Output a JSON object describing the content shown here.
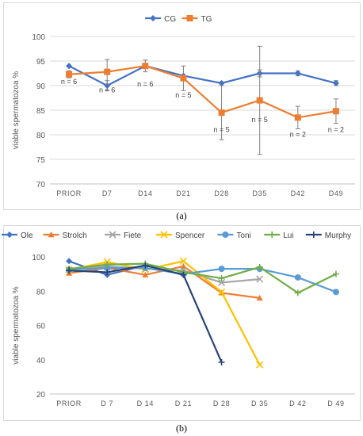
{
  "captions": {
    "a": "(a)",
    "b": "(b)"
  },
  "chart_data": [
    {
      "type": "line",
      "ylabel": "viable spermatozoa %",
      "xlabel": "",
      "categories": [
        "PRIOR",
        "D7",
        "D14",
        "D21",
        "D28",
        "D35",
        "D42",
        "D49"
      ],
      "ylim": [
        70,
        100
      ],
      "yticks": [
        70,
        75,
        80,
        85,
        90,
        95,
        100
      ],
      "grid": true,
      "legend_position": "top",
      "series": [
        {
          "name": "CG",
          "color": "#4472c4",
          "marker": "diamond",
          "values": [
            94,
            90,
            94,
            92,
            90.5,
            92.5,
            92.5,
            90.5
          ],
          "err": [
            0,
            1,
            0,
            0,
            0,
            0.7,
            0.5,
            0.5
          ]
        },
        {
          "name": "TG",
          "color": "#ed7d31",
          "marker": "square",
          "values": [
            92.3,
            92.8,
            94,
            91.5,
            84.5,
            87,
            83.5,
            84.8
          ],
          "err": [
            0.7,
            2.5,
            1.2,
            2.5,
            5.5,
            11,
            2.3,
            2.5
          ]
        }
      ],
      "annotations": [
        {
          "text": "n = 6",
          "x": "PRIOR",
          "y": 90.3
        },
        {
          "text": "n = 6",
          "x": "D7",
          "y": 88.6
        },
        {
          "text": "n = 6",
          "x": "D14",
          "y": 89.8
        },
        {
          "text": "n = 5",
          "x": "D21",
          "y": 87.6
        },
        {
          "text": "n = 5",
          "x": "D28",
          "y": 80.6
        },
        {
          "text": "n = 5",
          "x": "D35",
          "y": 82.6
        },
        {
          "text": "n = 2",
          "x": "D42",
          "y": 79.6
        },
        {
          "text": "n = 2",
          "x": "D49",
          "y": 80.6
        }
      ]
    },
    {
      "type": "line",
      "ylabel": "viable spermatozoa %",
      "xlabel": "",
      "categories": [
        "PRIOR",
        "D 7",
        "D 14",
        "D 21",
        "D 28",
        "D 35",
        "D 42",
        "D 49"
      ],
      "ylim": [
        20,
        100
      ],
      "yticks": [
        20,
        40,
        60,
        80,
        100
      ],
      "grid": false,
      "legend_position": "top",
      "series": [
        {
          "name": "Ole",
          "color": "#4472c4",
          "marker": "diamond",
          "values": [
            97.5,
            89.5,
            95,
            89.5,
            null,
            null,
            null,
            null
          ]
        },
        {
          "name": "Strolch",
          "color": "#ed7d31",
          "marker": "triangle",
          "values": [
            90.5,
            93.5,
            89.5,
            94.5,
            79,
            76,
            null,
            null
          ]
        },
        {
          "name": "Fiete",
          "color": "#a5a5a5",
          "marker": "x",
          "values": [
            92.5,
            94.5,
            93,
            92,
            85,
            87,
            null,
            null
          ]
        },
        {
          "name": "Spencer",
          "color": "#ffc000",
          "marker": "x",
          "values": [
            92.5,
            97,
            92.5,
            97.5,
            79.5,
            37,
            null,
            null
          ]
        },
        {
          "name": "Toni",
          "color": "#5b9bd5",
          "marker": "circle",
          "values": [
            92.5,
            93.5,
            93.5,
            90,
            93,
            93,
            88,
            79.5
          ]
        },
        {
          "name": "Lui",
          "color": "#70ad47",
          "marker": "plus",
          "values": [
            93,
            95.5,
            96,
            91,
            87.5,
            94,
            79,
            90
          ]
        },
        {
          "name": "Murphy",
          "color": "#264478",
          "marker": "plus",
          "values": [
            92,
            91,
            95,
            89.5,
            38.5,
            null,
            null,
            null
          ]
        }
      ]
    }
  ]
}
